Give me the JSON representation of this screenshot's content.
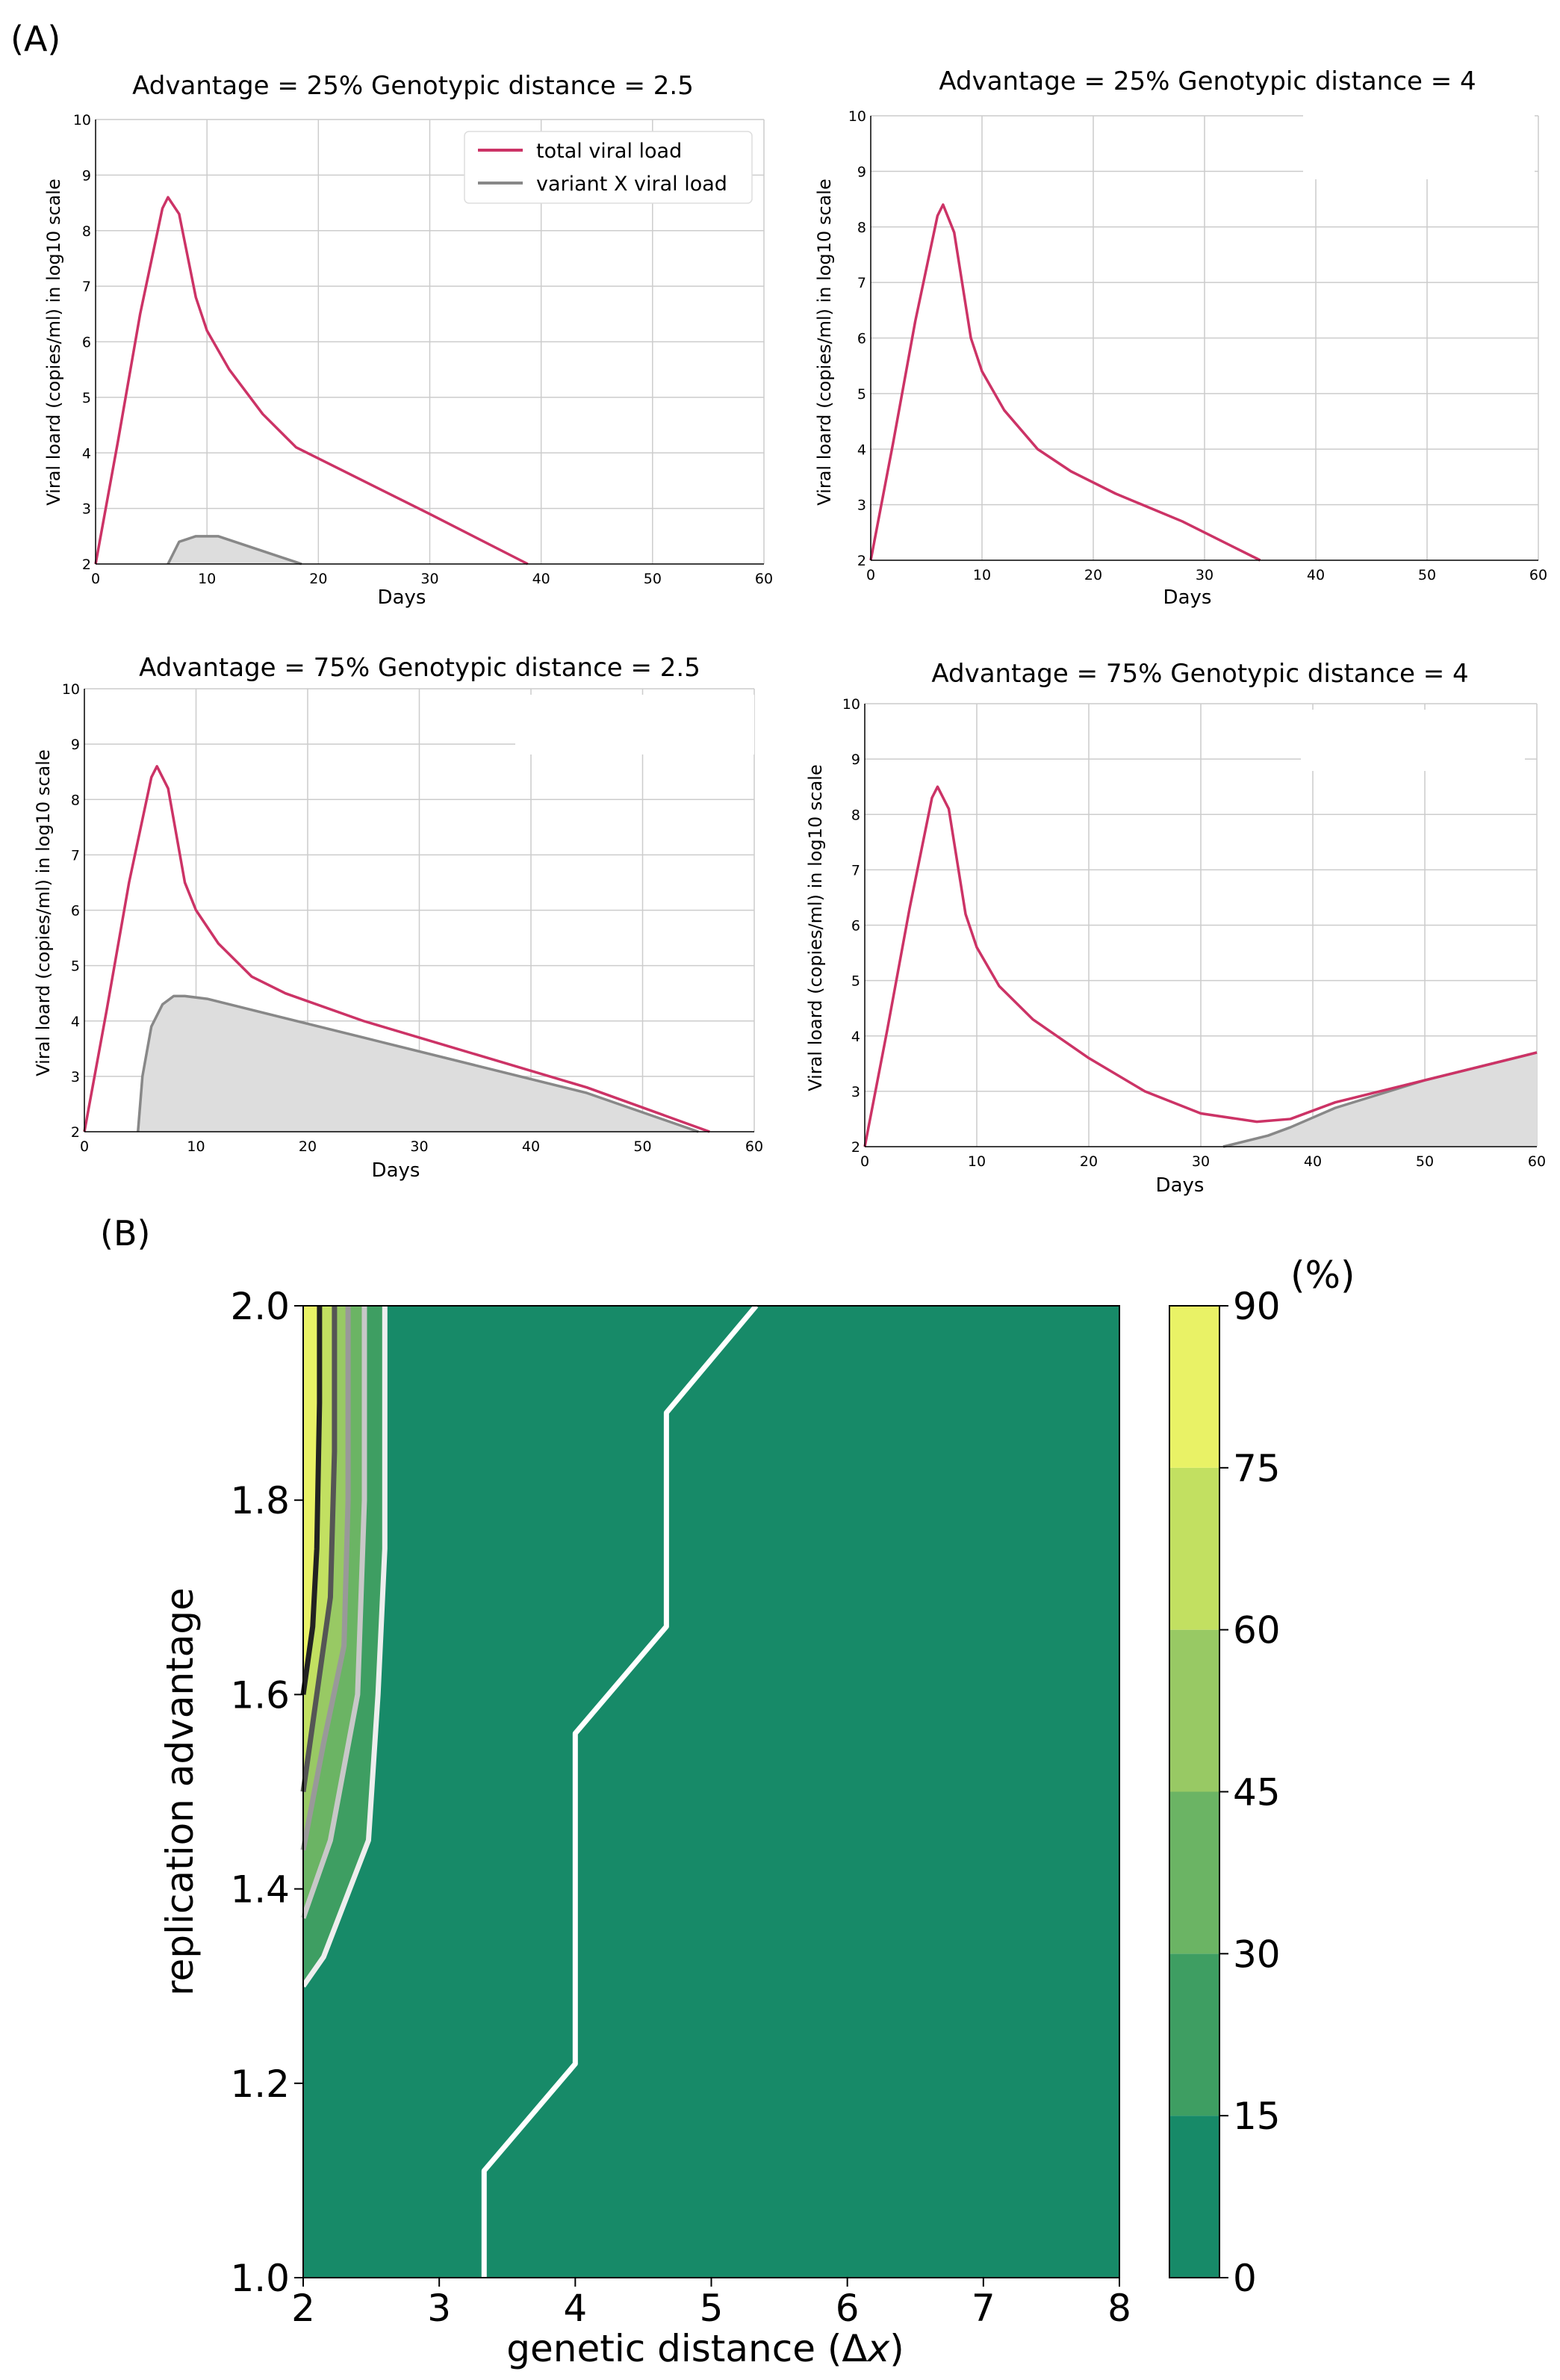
{
  "panel_labels": {
    "a": "(A)",
    "b": "(B)"
  },
  "colors": {
    "total": "#cc3366",
    "variant": "#888888",
    "variant_fill": "#dddddd",
    "grid": "#cccccc",
    "contour_fills": [
      "#178a68",
      "#3e9e62",
      "#6bb464",
      "#98c964",
      "#c2e061",
      "#e9f266"
    ],
    "contour_lines": [
      "#ffffff",
      "#eeeeee",
      "#c8c8c8",
      "#999999",
      "#555555",
      "#222222"
    ]
  },
  "legend": {
    "total": "total viral load",
    "variant": "variant X viral load"
  },
  "chart_data": [
    {
      "type": "line",
      "title": "Advantage = 25%  Genotypic distance = 2.5",
      "xlabel": "Days",
      "ylabel": "Viral loard (copies/ml) in log10 scale",
      "xlim": [
        0,
        60
      ],
      "ylim": [
        2,
        10
      ],
      "xticks": [
        0,
        10,
        20,
        30,
        40,
        50,
        60
      ],
      "yticks": [
        2,
        3,
        4,
        5,
        6,
        7,
        8,
        9,
        10
      ],
      "legend": "top-right",
      "series": [
        {
          "name": "total viral load",
          "x": [
            0,
            2,
            4,
            6,
            6.5,
            7.5,
            9,
            10,
            12,
            15,
            18,
            22,
            30,
            38.8
          ],
          "y": [
            2,
            4.2,
            6.5,
            8.4,
            8.6,
            8.3,
            6.8,
            6.2,
            5.5,
            4.7,
            4.1,
            3.7,
            2.9,
            2.0
          ]
        },
        {
          "name": "variant X viral load",
          "fill": true,
          "x": [
            6.5,
            7.5,
            9,
            11,
            14,
            17,
            18.5
          ],
          "y": [
            2.0,
            2.4,
            2.5,
            2.5,
            2.3,
            2.1,
            2.0
          ]
        }
      ]
    },
    {
      "type": "line",
      "title": "Advantage = 25%  Genotypic distance = 4",
      "xlabel": "Days",
      "ylabel": "Viral loard (copies/ml) in log10 scale",
      "xlim": [
        0,
        60
      ],
      "ylim": [
        2,
        10
      ],
      "xticks": [
        0,
        10,
        20,
        30,
        40,
        50,
        60
      ],
      "yticks": [
        2,
        3,
        4,
        5,
        6,
        7,
        8,
        9,
        10
      ],
      "series": [
        {
          "name": "total viral load",
          "x": [
            0,
            2,
            4,
            6,
            6.5,
            7.5,
            9,
            10,
            12,
            15,
            18,
            22,
            28,
            35
          ],
          "y": [
            2,
            4.1,
            6.3,
            8.2,
            8.4,
            7.9,
            6.0,
            5.4,
            4.7,
            4.0,
            3.6,
            3.2,
            2.7,
            2.0
          ]
        }
      ]
    },
    {
      "type": "line",
      "title": "Advantage = 75%  Genotypic distance = 2.5",
      "xlabel": "Days",
      "ylabel": "Viral loard (copies/ml) in log10 scale",
      "xlim": [
        0,
        60
      ],
      "ylim": [
        2,
        10
      ],
      "xticks": [
        0,
        10,
        20,
        30,
        40,
        50,
        60
      ],
      "yticks": [
        2,
        3,
        4,
        5,
        6,
        7,
        8,
        9,
        10
      ],
      "series": [
        {
          "name": "total viral load",
          "x": [
            0,
            2,
            4,
            6,
            6.5,
            7.5,
            9,
            10,
            12,
            15,
            18,
            25,
            35,
            45,
            56
          ],
          "y": [
            2,
            4.2,
            6.5,
            8.4,
            8.6,
            8.2,
            6.5,
            6.0,
            5.4,
            4.8,
            4.5,
            4.0,
            3.4,
            2.8,
            2.0
          ]
        },
        {
          "name": "variant X viral load",
          "fill": true,
          "x": [
            4.8,
            5.2,
            6,
            7,
            8,
            9,
            11,
            15,
            25,
            35,
            45,
            55
          ],
          "y": [
            2.0,
            3.0,
            3.9,
            4.3,
            4.45,
            4.45,
            4.4,
            4.2,
            3.7,
            3.2,
            2.7,
            2.0
          ]
        }
      ]
    },
    {
      "type": "line",
      "title": "Advantage = 75%  Genotypic distance = 4",
      "xlabel": "Days",
      "ylabel": "Viral loard (copies/ml) in log10 scale",
      "xlim": [
        0,
        60
      ],
      "ylim": [
        2,
        10
      ],
      "xticks": [
        0,
        10,
        20,
        30,
        40,
        50,
        60
      ],
      "yticks": [
        2,
        3,
        4,
        5,
        6,
        7,
        8,
        9,
        10
      ],
      "series": [
        {
          "name": "total viral load",
          "x": [
            0,
            2,
            4,
            6,
            6.5,
            7.5,
            9,
            10,
            12,
            15,
            20,
            25,
            30,
            35,
            38,
            42,
            50,
            60
          ],
          "y": [
            2,
            4.1,
            6.3,
            8.3,
            8.5,
            8.1,
            6.2,
            5.6,
            4.9,
            4.3,
            3.6,
            3.0,
            2.6,
            2.45,
            2.5,
            2.8,
            3.2,
            3.7
          ]
        },
        {
          "name": "variant X viral load",
          "fill": true,
          "x": [
            32,
            36,
            38,
            42,
            50,
            60
          ],
          "y": [
            2.0,
            2.2,
            2.35,
            2.7,
            3.2,
            3.7
          ]
        }
      ]
    },
    {
      "type": "contour",
      "xlabel": "genetic distance (Δ",
      "xlabel_var": "x",
      "xlabel_close": ")",
      "ylabel": "replication advantage",
      "xlim": [
        2,
        8
      ],
      "ylim": [
        1.0,
        2.0
      ],
      "xticks": [
        2,
        3,
        4,
        5,
        6,
        7,
        8
      ],
      "yticks": [
        1.0,
        1.2,
        1.4,
        1.6,
        1.8,
        2.0
      ],
      "xtick_labels": [
        "2",
        "3",
        "4",
        "5",
        "6",
        "7",
        "8"
      ],
      "ytick_labels": [
        "1.0",
        "1.2",
        "1.4",
        "1.6",
        "1.8",
        "2.0"
      ],
      "colorbar": {
        "unit": "(%)",
        "levels": [
          0,
          15,
          30,
          45,
          60,
          75,
          90
        ],
        "labels": [
          "0",
          "15",
          "30",
          "45",
          "60",
          "75",
          "90"
        ]
      },
      "contours": [
        {
          "level": 0,
          "points": [
            [
              3.33,
              1.0
            ],
            [
              3.33,
              1.11
            ],
            [
              4.0,
              1.22
            ],
            [
              4.0,
              1.56
            ],
            [
              4.67,
              1.67
            ],
            [
              4.67,
              1.89
            ],
            [
              5.33,
              2.0
            ]
          ]
        },
        {
          "level": 15,
          "points": [
            [
              2.0,
              1.3
            ],
            [
              2.15,
              1.33
            ],
            [
              2.48,
              1.45
            ],
            [
              2.55,
              1.6
            ],
            [
              2.6,
              1.75
            ],
            [
              2.6,
              2.0
            ]
          ]
        },
        {
          "level": 30,
          "points": [
            [
              2.0,
              1.37
            ],
            [
              2.2,
              1.45
            ],
            [
              2.4,
              1.6
            ],
            [
              2.45,
              1.8
            ],
            [
              2.45,
              2.0
            ]
          ]
        },
        {
          "level": 45,
          "points": [
            [
              2.0,
              1.44
            ],
            [
              2.15,
              1.55
            ],
            [
              2.3,
              1.65
            ],
            [
              2.33,
              1.8
            ],
            [
              2.33,
              2.0
            ]
          ]
        },
        {
          "level": 60,
          "points": [
            [
              2.0,
              1.5
            ],
            [
              2.1,
              1.6
            ],
            [
              2.2,
              1.7
            ],
            [
              2.23,
              1.85
            ],
            [
              2.23,
              2.0
            ]
          ]
        },
        {
          "level": 75,
          "points": [
            [
              2.0,
              1.6
            ],
            [
              2.07,
              1.67
            ],
            [
              2.1,
              1.75
            ],
            [
              2.12,
              1.9
            ],
            [
              2.12,
              2.0
            ]
          ]
        }
      ]
    }
  ]
}
